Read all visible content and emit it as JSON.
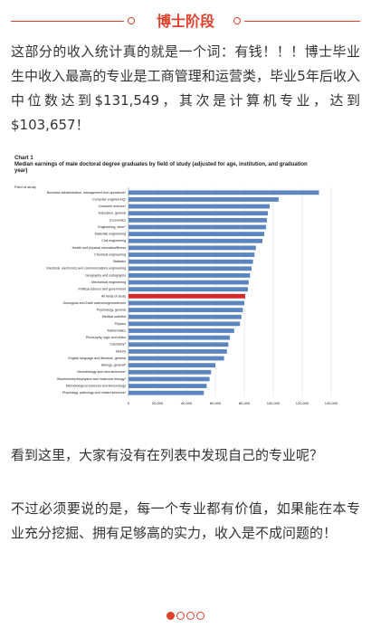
{
  "header": {
    "title": "博士阶段"
  },
  "paragraphs": [
    "这部分的收入统计真的就是一个词：有钱！！！博士毕业生中收入最高的专业是工商管理和运营类，毕业5年后收入中位数达到$131,549，其次是计算机专业，达到$103,657！",
    "看到这里，大家有没有在列表中发现自己的专业呢？",
    "不过必须要说的是，每一个专业都有价值，如果能在本专业充分挖掘、拥有足够高的实力，收入是不成问题的！"
  ],
  "chart_data": {
    "type": "hbar",
    "title": "Chart 1",
    "subtitle": "Median earnings of male doctoral degree graduates by field of study (adjusted for age, institution, and graduation year)",
    "y_label": "Field of study",
    "categories": [
      "Business administration, management and operations*",
      "Computer engineering*",
      "Computer science*",
      "Education, general",
      "Economics",
      "Engineering, other*",
      "Materials engineering",
      "Civil engineering",
      "Health and physical education/fitness",
      "Chemical engineering",
      "Statistics",
      "Electrical, electronics and communications engineering",
      "Geography and cartography",
      "Mechanical engineering",
      "Political science and government",
      "All fields of study",
      "Geological and Earth sciences/geosciences",
      "Psychology, general",
      "Medical scientist",
      "Physics",
      "Mathematics",
      "Philosophy, logic and ethics",
      "Chemistry*",
      "History",
      "English language and literature, general",
      "Biology, general*",
      "Neurobiology and neurosciences*",
      "Biochemistry/biophysics and molecular biology*",
      "Microbiological sciences and immunology",
      "Physiology, pathology and related sciences*"
    ],
    "values": [
      131549,
      103657,
      97500,
      96250,
      95600,
      95000,
      93750,
      92500,
      88000,
      87000,
      86000,
      85000,
      84000,
      83000,
      82500,
      80600,
      80000,
      79000,
      78000,
      77000,
      73000,
      70000,
      69000,
      68000,
      66000,
      60000,
      57000,
      56000,
      54000,
      52000
    ],
    "color": "#5b85bf",
    "highlight_index": 15,
    "highlight_color": "#d9262b",
    "xlim": [
      0,
      140000
    ],
    "xticks": [
      0,
      {
        "value": 20000,
        "label": "20,000"
      },
      {
        "value": 40000,
        "label": "40,000"
      },
      {
        "value": 60000,
        "label": "60,000"
      },
      {
        "value": 80000,
        "label": "80,000"
      },
      {
        "value": 100000,
        "label": "100,000"
      },
      {
        "value": 120000,
        "label": "120,000"
      },
      {
        "value": 140000,
        "label": "140,000"
      }
    ],
    "grid": true
  }
}
